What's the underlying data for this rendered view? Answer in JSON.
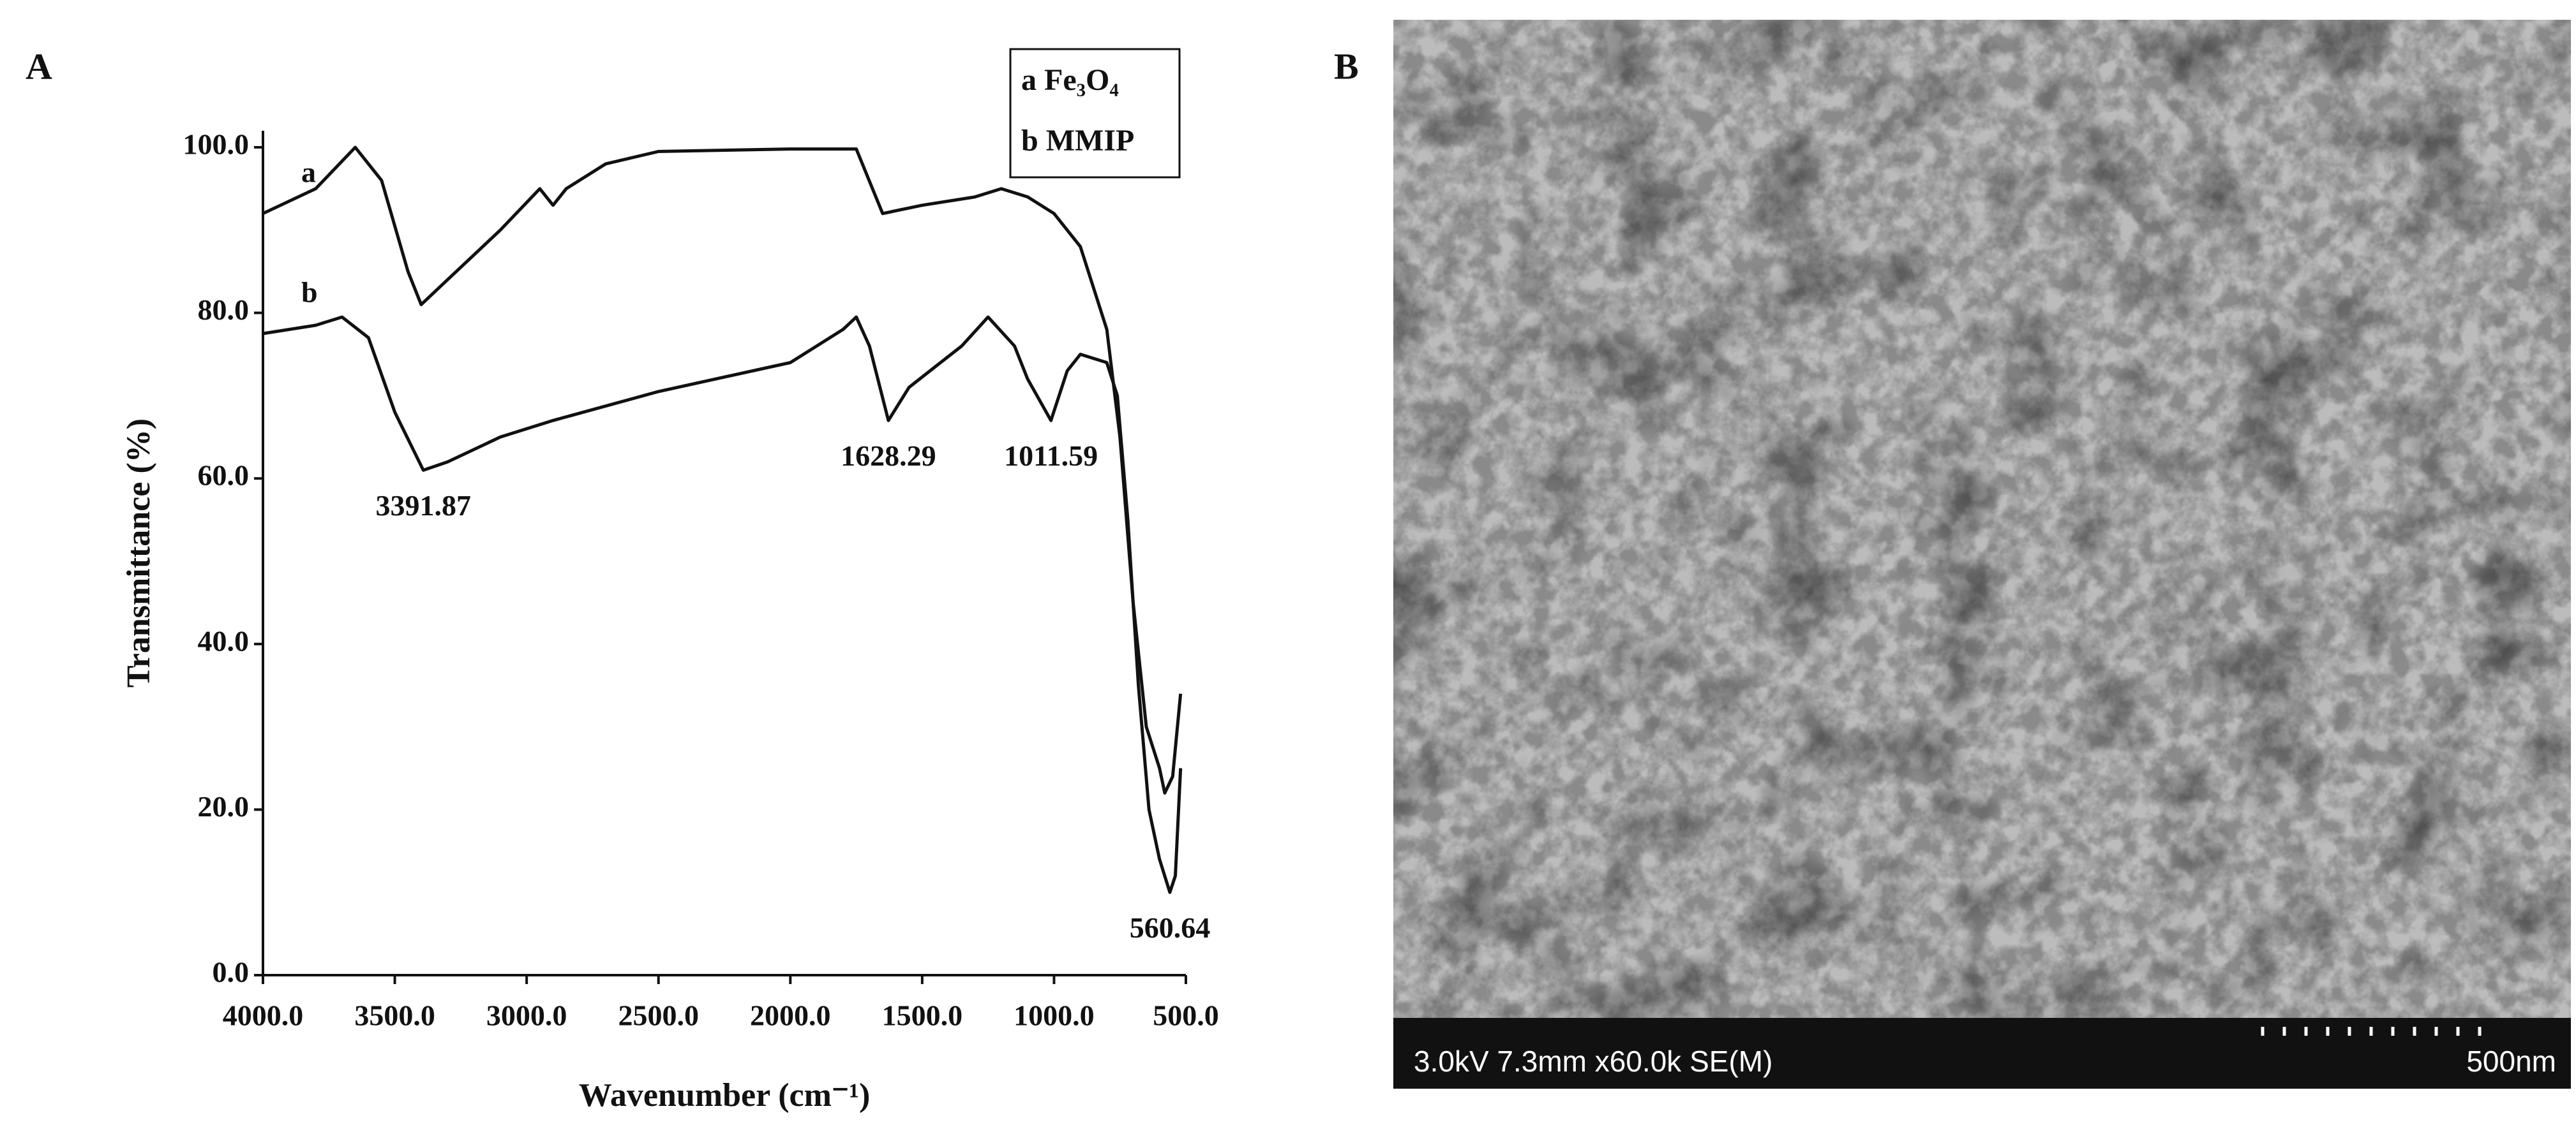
{
  "chart_data": {
    "type": "line",
    "panel_label": "A",
    "x_label": "Wavenumber (cm⁻¹)",
    "y_label": "Transmittance (%)",
    "xlim": [
      4000,
      500
    ],
    "ylim": [
      0,
      102
    ],
    "xticks": [
      {
        "value": 4000,
        "label": "4000.0"
      },
      {
        "value": 3500,
        "label": "3500.0"
      },
      {
        "value": 3000,
        "label": "3000.0"
      },
      {
        "value": 2500,
        "label": "2500.0"
      },
      {
        "value": 2000,
        "label": "2000.0"
      },
      {
        "value": 1500,
        "label": "1500.0"
      },
      {
        "value": 1000,
        "label": "1000.0"
      },
      {
        "value": 500,
        "label": "500.0"
      }
    ],
    "yticks": [
      {
        "value": 0,
        "label": "0.0"
      },
      {
        "value": 20,
        "label": "20.0"
      },
      {
        "value": 40,
        "label": "40.0"
      },
      {
        "value": 60,
        "label": "60.0"
      },
      {
        "value": 80,
        "label": "80.0"
      },
      {
        "value": 100,
        "label": "100.0"
      }
    ],
    "grid": false,
    "legend": "top-right",
    "series": [
      {
        "label": "a",
        "name": "Fe₃O₄",
        "color": "#111111",
        "x": [
          4000,
          3800,
          3650,
          3550,
          3450,
          3400,
          3300,
          3100,
          2950,
          2900,
          2850,
          2700,
          2500,
          2000,
          1750,
          1650,
          1500,
          1300,
          1200,
          1100,
          1000,
          900,
          800,
          750,
          700,
          650,
          600,
          580,
          550,
          520
        ],
        "values": [
          92,
          95,
          100,
          96,
          85,
          81,
          84,
          90,
          95,
          93,
          95,
          98,
          99.5,
          99.8,
          99.8,
          92,
          93,
          94,
          95,
          94,
          92,
          88,
          78,
          65,
          45,
          30,
          25,
          22,
          24,
          34
        ]
      },
      {
        "label": "b",
        "name": "MMIP",
        "color": "#111111",
        "x": [
          4000,
          3800,
          3700,
          3600,
          3500,
          3391.87,
          3300,
          3100,
          2900,
          2500,
          2000,
          1800,
          1750,
          1700,
          1628.29,
          1550,
          1450,
          1350,
          1250,
          1150,
          1100,
          1011.59,
          950,
          900,
          800,
          760,
          720,
          680,
          640,
          600,
          560.64,
          540,
          520
        ],
        "values": [
          77.5,
          78.5,
          79.5,
          77,
          68,
          61,
          62,
          65,
          67,
          70.5,
          74,
          78,
          79.5,
          76,
          67,
          71,
          73.5,
          76,
          79.5,
          76,
          72,
          67,
          73,
          75,
          74,
          70,
          55,
          35,
          20,
          14,
          10,
          12,
          25
        ]
      }
    ],
    "annotations": [
      {
        "text": "3391.87",
        "x": 3391.87
      },
      {
        "text": "1628.29",
        "x": 1628.29
      },
      {
        "text": "1011.59",
        "x": 1011.59
      },
      {
        "text": "560.64",
        "x": 560.64
      }
    ]
  },
  "image_panel": {
    "panel_label": "B",
    "info": "3.0kV 7.3mm x60.0k SE(M)",
    "scale": "500nm"
  }
}
